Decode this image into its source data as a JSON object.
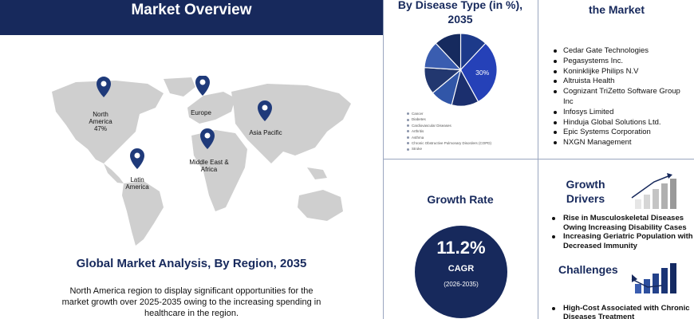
{
  "overview": {
    "title": "Market Overview",
    "regions": [
      {
        "name": "North America",
        "share": "47%"
      },
      {
        "name": "Europe",
        "share": ""
      },
      {
        "name": "Asia Pacific",
        "share": ""
      },
      {
        "name": "Middle East & Africa",
        "share": ""
      },
      {
        "name": "Latin America",
        "share": ""
      }
    ],
    "analysis_title": "Global Market Analysis, By Region, 2035",
    "analysis_text": "North America region to display significant opportunities for the market growth over 2025-2035 owing to the increasing spending in healthcare in the region."
  },
  "disease": {
    "title": "By Disease Type (in %), 2035",
    "highlight_label": "30%",
    "legend": [
      "Cancer",
      "Diabetes",
      "Cardiovascular Diseases",
      "Arthritis",
      "Asthma",
      "Chronic Obstructive Pulmonary Disorders (COPD)",
      "Stroke"
    ]
  },
  "chart_data": {
    "type": "pie",
    "title": "By Disease Type (in %), 2035",
    "categories": [
      "Cancer",
      "Diabetes",
      "Cardiovascular Diseases",
      "Arthritis",
      "Asthma",
      "Chronic Obstructive Pulmonary Disorders (COPD)",
      "Stroke"
    ],
    "values": [
      12,
      30,
      12,
      10,
      12,
      12,
      12
    ],
    "data_labels": [
      "",
      "30%",
      "",
      "",
      "",
      "",
      ""
    ],
    "colors": [
      "#1d3a8a",
      "#2541b8",
      "#1b2f6e",
      "#3156a8",
      "#22376f",
      "#3a5db0",
      "#162a5e"
    ]
  },
  "players": {
    "title": "the Market",
    "items": [
      "Cedar Gate Technologies",
      "Pegasystems Inc.",
      "Koninklijke Philips N.V",
      "Altruista Health",
      "Cognizant TriZetto Software Group Inc",
      "Infosys Limited",
      "Hinduja Global Solutions Ltd.",
      "Epic Systems Corporation",
      "NXGN Management"
    ]
  },
  "growth": {
    "title": "Growth Rate",
    "value": "11.2%",
    "label": "CAGR",
    "period": "(2026-2035)"
  },
  "drivers": {
    "title": "Growth Drivers",
    "items": [
      "Rise in Musculoskeletal Diseases Owing Increasing Disability Cases",
      "Increasing Geriatric Population with Decreased Immunity"
    ]
  },
  "challenges": {
    "title": "Challenges",
    "items": [
      "High-Cost Associated with Chronic Diseases Treatment"
    ]
  },
  "colors": {
    "navy": "#17295c",
    "pin": "#1f3a7a",
    "map": "#cfcfcf",
    "divider": "#9aa6bf"
  }
}
